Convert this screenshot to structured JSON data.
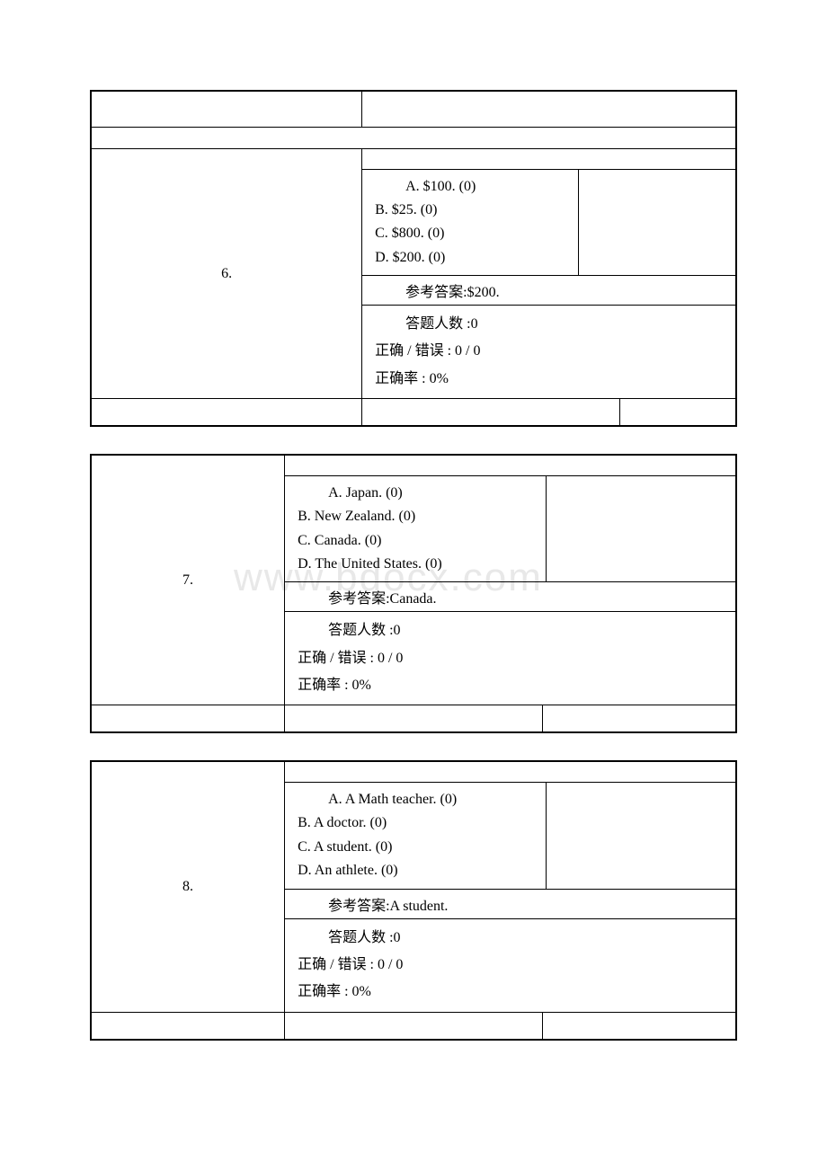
{
  "questions": [
    {
      "number": "6.",
      "options": {
        "a": "A. $100. (0)",
        "b": "B. $25. (0)",
        "c": "C. $800. (0)",
        "d": "D. $200. (0)"
      },
      "answer_label": "参考答案:$200.",
      "stats": {
        "count": "答题人数 :0",
        "ratio": "正确 / 错误 : 0 / 0",
        "rate": "正确率 : 0%"
      }
    },
    {
      "number": "7.",
      "options": {
        "a": "A. Japan. (0)",
        "b": "B. New Zealand. (0)",
        "c": "C. Canada. (0)",
        "d": "D. The United States. (0)"
      },
      "answer_label": "参考答案:Canada.",
      "stats": {
        "count": "答题人数 :0",
        "ratio": "正确 / 错误 : 0 / 0",
        "rate": "正确率 : 0%"
      }
    },
    {
      "number": "8.",
      "options": {
        "a": "A. A Math teacher. (0)",
        "b": "B. A doctor. (0)",
        "c": "C. A student. (0)",
        "d": "D. An athlete. (0)"
      },
      "answer_label": "参考答案:A student.",
      "stats": {
        "count": "答题人数 :0",
        "ratio": "正确 / 错误 : 0 / 0",
        "rate": "正确率 : 0%"
      }
    }
  ],
  "watermark": "www.bdocx.com",
  "colors": {
    "border": "#000000",
    "text": "#000000",
    "background": "#ffffff",
    "watermark": "#e8e8e8"
  }
}
